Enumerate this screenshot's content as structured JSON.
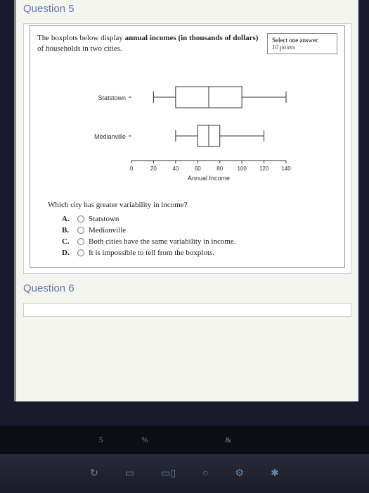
{
  "question5": {
    "header": "Question 5",
    "prompt_pre": "The boxplots below display ",
    "prompt_bold": "annual incomes (in thousands of dollars)",
    "prompt_post": " of households in two cities.",
    "select_text": "Select one answer.",
    "points_text": "10 points",
    "subquestion": "Which city has greater variability in income?",
    "options": [
      {
        "letter": "A.",
        "text": "Statstown"
      },
      {
        "letter": "B.",
        "text": "Medianville"
      },
      {
        "letter": "C.",
        "text": "Both cities have the same variability in income."
      },
      {
        "letter": "D.",
        "text": "It is impossible to tell from the boxplots."
      }
    ]
  },
  "question6": {
    "header": "Question 6"
  },
  "chart": {
    "type": "boxplot",
    "x_label": "Annual Income",
    "xlim": [
      0,
      140
    ],
    "ticks": [
      0,
      20,
      40,
      60,
      80,
      100,
      120,
      140
    ],
    "categories": [
      "Statstown",
      "Medianville"
    ],
    "boxes": [
      {
        "name": "Statstown",
        "min": 20,
        "q1": 40,
        "median": 70,
        "q3": 100,
        "max": 140
      },
      {
        "name": "Medianville",
        "min": 40,
        "q1": 60,
        "median": 70,
        "q3": 80,
        "max": 120
      }
    ],
    "stroke": "#333333",
    "bg": "#ffffff",
    "label_fontsize": 9,
    "tick_fontsize": 8
  },
  "taskbar_icons": [
    "↻",
    "▭",
    "▭▯",
    "○",
    "⚙",
    "✱"
  ],
  "keyboard_keys": [
    "5",
    "%",
    "",
    "&",
    ""
  ]
}
